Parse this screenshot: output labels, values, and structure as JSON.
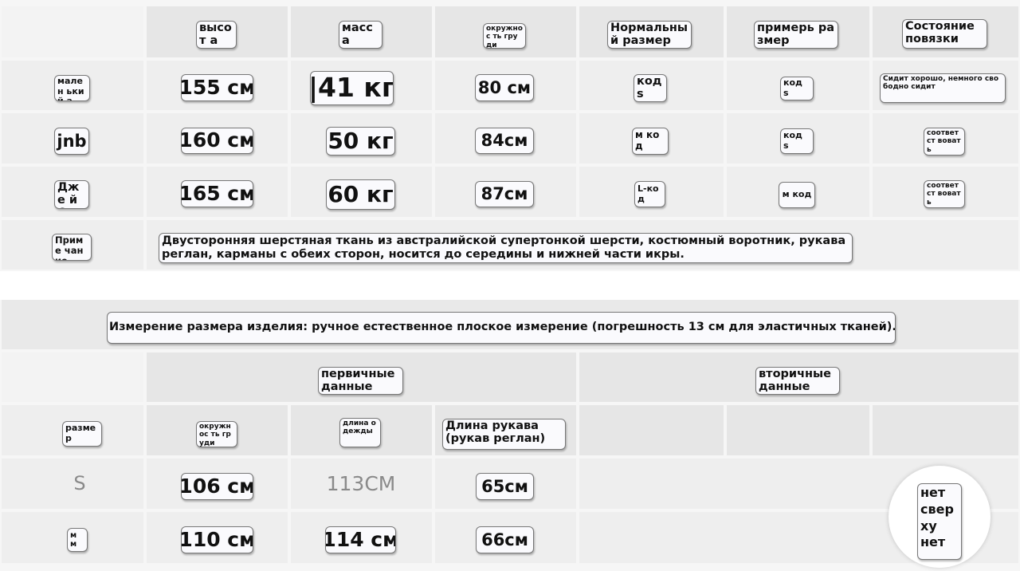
{
  "size_table": {
    "headers": [
      "высот а",
      "масс а",
      "окружнос ть груди",
      "Нормальны й размер",
      "примерь размер",
      "Состояние повязки"
    ],
    "rows": [
      {
        "name": "мален ький а",
        "height": "155 см",
        "weight": "|41 кг",
        "chest": "80 см",
        "normal_size": "код s",
        "try_size": "код s",
        "state": "Сидит хорошо, немного свободно сидит"
      },
      {
        "name": "jnb",
        "height": "160 см",
        "weight": "50 кг",
        "chest": "84см",
        "normal_size": "м код",
        "try_size": "код s",
        "state": "соответст вовать"
      },
      {
        "name": "Дже й Си",
        "height": "165 см",
        "weight": "60 кг",
        "chest": "87см",
        "normal_size": "L-код",
        "try_size": "м код",
        "state": "соответст вовать"
      }
    ],
    "note_label": "Приме чание",
    "note_text": "Двусторонняя шерстяная ткань из австралийской супертонкой шерсти, костюмный воротник, рукава реглан, карманы с обеих сторон, носится до середины и нижней части икры."
  },
  "measure_banner": "Измерение размера изделия: ручное естественное плоское измерение (погрешность 13 см для эластичных тканей).",
  "product_table": {
    "group_primary": "первичные данные",
    "group_secondary": "вторичные данные",
    "headers": [
      "размер",
      "окружнос ть груди",
      "длина одежды",
      "Длина рукава (рукав реглан)"
    ],
    "rows": [
      {
        "size": "S",
        "chest": "106 см",
        "length": "113CM",
        "sleeve": "65см"
      },
      {
        "size": "м м",
        "chest": "110 см",
        "length": "114 см",
        "sleeve": "66см"
      }
    ],
    "badge": "нет свер ху нет"
  }
}
